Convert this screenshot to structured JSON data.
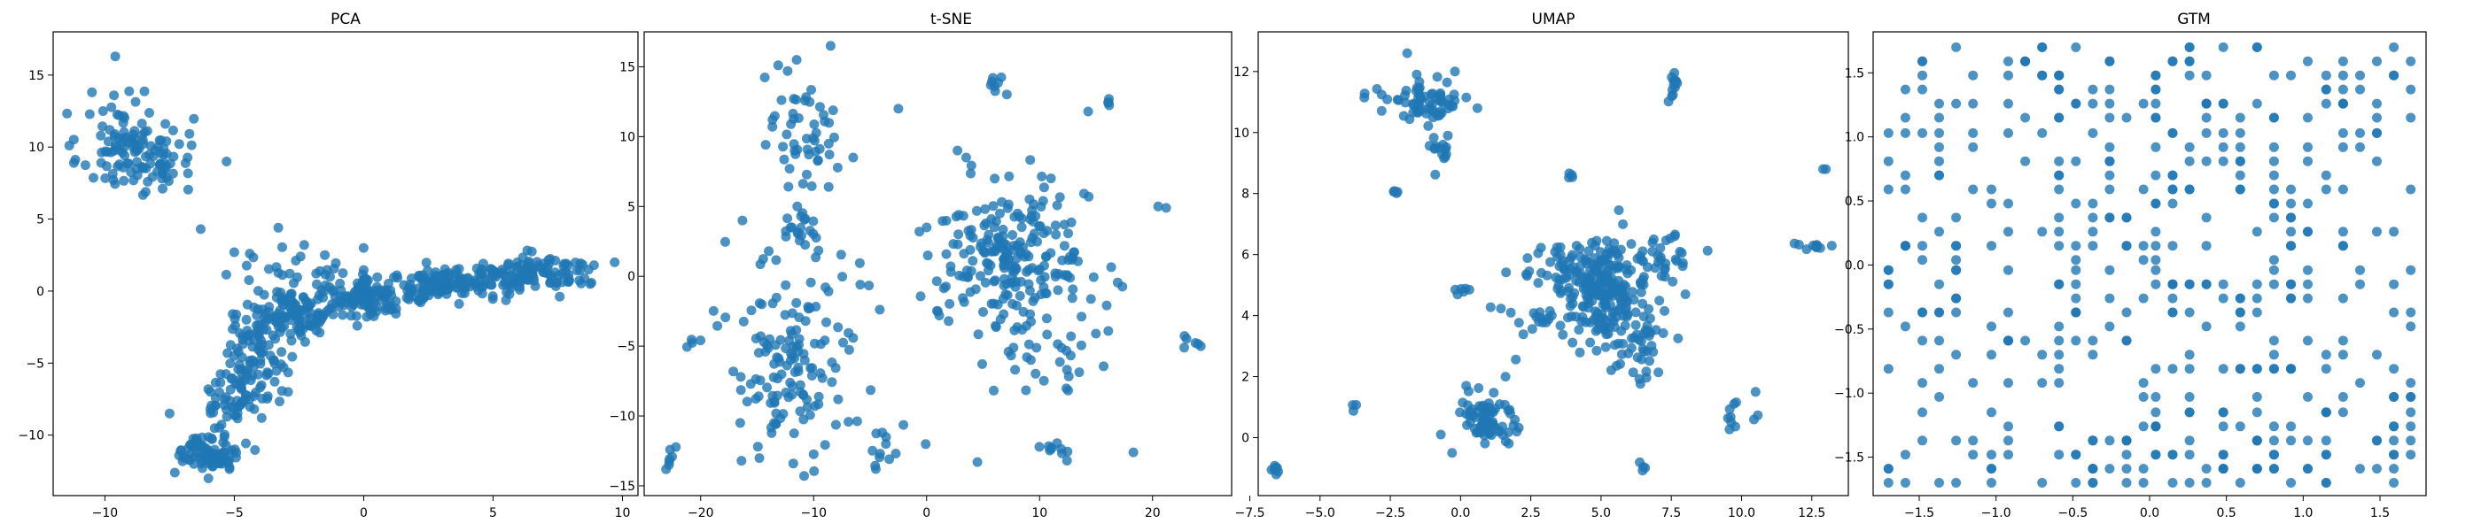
{
  "colors": {
    "points": "#1f77b4",
    "frame": "#000000"
  },
  "chart_data": [
    {
      "type": "scatter",
      "title": "PCA",
      "xlim": [
        -12,
        10.6
      ],
      "ylim": [
        -14.2,
        18
      ],
      "xticks": [
        -10,
        -5,
        0,
        5,
        10
      ],
      "xtick_labels": [
        "−10",
        "−5",
        "0",
        "5",
        "10"
      ],
      "yticks": [
        -10,
        -5,
        0,
        5,
        10,
        15
      ],
      "ytick_labels": [
        "−10",
        "−5",
        "0",
        "5",
        "10",
        "15"
      ],
      "clusters": [
        {
          "cx": -8.8,
          "cy": 9.6,
          "sx": 1.1,
          "sy": 1.4,
          "n": 110
        },
        {
          "cx": -9.5,
          "cy": 12.0,
          "sx": 0.5,
          "sy": 1.2,
          "n": 15
        },
        {
          "cx": 6.5,
          "cy": 1.2,
          "sx": 1.3,
          "sy": 0.6,
          "n": 130
        },
        {
          "cx": 3.0,
          "cy": 0.4,
          "sx": 1.2,
          "sy": 0.6,
          "n": 110
        },
        {
          "cx": 0.0,
          "cy": -0.3,
          "sx": 1.0,
          "sy": 0.8,
          "n": 110
        },
        {
          "cx": -2.6,
          "cy": -1.6,
          "sx": 0.8,
          "sy": 0.9,
          "n": 100
        },
        {
          "cx": -4.2,
          "cy": -4.5,
          "sx": 0.6,
          "sy": 1.6,
          "n": 90
        },
        {
          "cx": -5.1,
          "cy": -7.5,
          "sx": 0.5,
          "sy": 1.1,
          "n": 50
        },
        {
          "cx": -5.9,
          "cy": -11.2,
          "sx": 0.6,
          "sy": 0.6,
          "n": 90
        },
        {
          "cx": -3.0,
          "cy": 1.5,
          "sx": 1.0,
          "sy": 0.6,
          "n": 15
        }
      ],
      "points": [
        [
          -9.6,
          16.3
        ],
        [
          -10.5,
          13.8
        ],
        [
          -11.2,
          8.9
        ],
        [
          -5.3,
          9.0
        ],
        [
          -6.3,
          4.3
        ],
        [
          -3.3,
          4.4
        ],
        [
          -7.3,
          -12.6
        ],
        [
          -6.0,
          -13.0
        ],
        [
          -7.5,
          -8.5
        ],
        [
          -5.0,
          2.7
        ],
        [
          -2.3,
          3.2
        ],
        [
          -1.5,
          2.5
        ],
        [
          0.0,
          3.0
        ],
        [
          9.7,
          2.0
        ],
        [
          8.9,
          1.8
        ],
        [
          -4.4,
          2.6
        ]
      ]
    },
    {
      "type": "scatter",
      "title": "t-SNE",
      "xlim": [
        -25,
        27
      ],
      "ylim": [
        -15.7,
        17.5
      ],
      "xticks": [
        -20,
        -10,
        0,
        10,
        20
      ],
      "xtick_labels": [
        "−20",
        "−10",
        "0",
        "10",
        "20"
      ],
      "yticks": [
        -15,
        -10,
        -5,
        0,
        5,
        10,
        15
      ],
      "ytick_labels": [
        "−15",
        "−10",
        "−5",
        "0",
        "5",
        "10",
        "15"
      ],
      "clusters": [
        {
          "cx": 8,
          "cy": 1,
          "sx": 3.2,
          "sy": 2.6,
          "n": 200
        },
        {
          "cx": -12,
          "cy": -7.5,
          "sx": 2.0,
          "sy": 2.5,
          "n": 90
        },
        {
          "cx": -11,
          "cy": 10,
          "sx": 1.5,
          "sy": 2.5,
          "n": 50
        },
        {
          "cx": -11,
          "cy": 3.5,
          "sx": 1.2,
          "sy": 1.0,
          "n": 20
        },
        {
          "cx": -15,
          "cy": -2,
          "sx": 2.5,
          "sy": 2.0,
          "n": 25
        },
        {
          "cx": 12,
          "cy": -5,
          "sx": 3,
          "sy": 2,
          "n": 30
        },
        {
          "cx": 3,
          "cy": 2,
          "sx": 2,
          "sy": 3,
          "n": 25
        },
        {
          "cx": -4,
          "cy": -12,
          "sx": 1.5,
          "sy": 1.0,
          "n": 14
        },
        {
          "cx": 11,
          "cy": -12.3,
          "sx": 1.0,
          "sy": 0.5,
          "n": 10
        },
        {
          "cx": 6.5,
          "cy": 13.6,
          "sx": 0.6,
          "sy": 0.6,
          "n": 8
        },
        {
          "cx": 24,
          "cy": -4.7,
          "sx": 0.7,
          "sy": 0.2,
          "n": 6
        },
        {
          "cx": 16,
          "cy": 12.5,
          "sx": 0.3,
          "sy": 0.3,
          "n": 4
        },
        {
          "cx": -22.5,
          "cy": -13,
          "sx": 0.4,
          "sy": 0.7,
          "n": 6
        },
        {
          "cx": -21,
          "cy": -5,
          "sx": 0.3,
          "sy": 0.3,
          "n": 3
        },
        {
          "cx": -8,
          "cy": -3,
          "sx": 2,
          "sy": 3,
          "n": 25
        }
      ],
      "points": [
        [
          -8.5,
          16.5
        ],
        [
          -11.5,
          15.5
        ],
        [
          -12.3,
          14.7
        ],
        [
          3.5,
          8.5
        ],
        [
          -2.5,
          12
        ],
        [
          -22.8,
          -13.5
        ],
        [
          -11.8,
          -13.4
        ],
        [
          -4.5,
          -13.8
        ],
        [
          -13.5,
          -10.5
        ],
        [
          -16.5,
          -10.5
        ],
        [
          18.3,
          -12.6
        ],
        [
          0,
          3.5
        ],
        [
          -6.5,
          8.5
        ],
        [
          -16.3,
          4
        ],
        [
          20.5,
          5
        ],
        [
          21.2,
          4.9
        ],
        [
          4.5,
          -13.3
        ],
        [
          14.3,
          11.8
        ]
      ]
    },
    {
      "type": "scatter",
      "title": "UMAP",
      "xlim": [
        -7.2,
        13.8
      ],
      "ylim": [
        -1.9,
        13.3
      ],
      "xticks": [
        -7.5,
        -5.0,
        -2.5,
        0.0,
        2.5,
        5.0,
        7.5,
        10.0,
        12.5
      ],
      "xtick_labels": [
        "−7.5",
        "−5.0",
        "−2.5",
        "0.0",
        "2.5",
        "5.0",
        "7.5",
        "10.0",
        "12.5"
      ],
      "yticks": [
        0,
        2,
        4,
        6,
        8,
        10,
        12
      ],
      "ytick_labels": [
        "0",
        "2",
        "4",
        "6",
        "8",
        "10",
        "12"
      ],
      "clusters": [
        {
          "cx": 5.1,
          "cy": 4.8,
          "sx": 0.8,
          "sy": 0.8,
          "n": 220
        },
        {
          "cx": 6.5,
          "cy": 3.0,
          "sx": 0.5,
          "sy": 0.6,
          "n": 40
        },
        {
          "cx": 3.5,
          "cy": 5.6,
          "sx": 0.7,
          "sy": 0.4,
          "n": 35
        },
        {
          "cx": 7.2,
          "cy": 6.0,
          "sx": 0.6,
          "sy": 0.4,
          "n": 25
        },
        {
          "cx": 2.7,
          "cy": 3.8,
          "sx": 0.6,
          "sy": 0.3,
          "n": 15
        },
        {
          "cx": -1.2,
          "cy": 11.0,
          "sx": 0.6,
          "sy": 0.35,
          "n": 60
        },
        {
          "cx": -0.8,
          "cy": 9.5,
          "sx": 0.3,
          "sy": 0.4,
          "n": 15
        },
        {
          "cx": 0.9,
          "cy": 0.6,
          "sx": 0.5,
          "sy": 0.5,
          "n": 70
        },
        {
          "cx": 7.6,
          "cy": 11.5,
          "sx": 0.1,
          "sy": 0.3,
          "n": 12
        },
        {
          "cx": 12.5,
          "cy": 6.3,
          "sx": 0.35,
          "sy": 0.1,
          "n": 10
        },
        {
          "cx": 10.0,
          "cy": 0.6,
          "sx": 0.3,
          "sy": 0.35,
          "n": 10
        },
        {
          "cx": -6.6,
          "cy": -1.1,
          "sx": 0.15,
          "sy": 0.1,
          "n": 8
        },
        {
          "cx": -3.1,
          "cy": 11.0,
          "sx": 0.3,
          "sy": 0.2,
          "n": 6
        },
        {
          "cx": -2.3,
          "cy": 8.0,
          "sx": 0.1,
          "sy": 0.1,
          "n": 4
        },
        {
          "cx": 0.0,
          "cy": 4.8,
          "sx": 0.2,
          "sy": 0.1,
          "n": 6
        },
        {
          "cx": 6.5,
          "cy": -1.0,
          "sx": 0.1,
          "sy": 0.2,
          "n": 4
        },
        {
          "cx": 4.0,
          "cy": 8.5,
          "sx": 0.1,
          "sy": 0.1,
          "n": 4
        },
        {
          "cx": -3.8,
          "cy": 1.0,
          "sx": 0.1,
          "sy": 0.1,
          "n": 3
        }
      ],
      "points": [
        [
          -1.9,
          12.6
        ],
        [
          13.0,
          8.8
        ],
        [
          12.9,
          8.8
        ],
        [
          -0.2,
          12.0
        ],
        [
          0.6,
          10.8
        ],
        [
          1.6,
          2.0
        ],
        [
          -0.3,
          -0.5
        ],
        [
          2.0,
          0.2
        ],
        [
          8.0,
          4.7
        ],
        [
          10.5,
          1.5
        ],
        [
          0.2,
          1.7
        ]
      ]
    },
    {
      "type": "scatter",
      "title": "GTM",
      "xlim": [
        -1.8,
        1.8
      ],
      "ylim": [
        -1.8,
        1.82
      ],
      "xticks": [
        -1.5,
        -1.0,
        -0.5,
        0.0,
        0.5,
        1.0,
        1.5
      ],
      "xtick_labels": [
        "−1.5",
        "−1.0",
        "−0.5",
        "0.0",
        "0.5",
        "1.0",
        "1.5"
      ],
      "yticks": [
        -1.5,
        -1.0,
        -0.5,
        0.0,
        0.5,
        1.0,
        1.5
      ],
      "ytick_labels": [
        "−1.5",
        "−1.0",
        "−0.5",
        "0.0",
        "0.5",
        "1.0",
        "1.5"
      ],
      "grid_levels": [
        -1.7,
        -1.59,
        -1.48,
        -1.37,
        -1.26,
        -1.15,
        -1.03,
        -0.92,
        -0.81,
        -0.7,
        -0.59,
        -0.48,
        -0.37,
        -0.26,
        -0.15,
        -0.04,
        0.04,
        0.15,
        0.26,
        0.37,
        0.48,
        0.59,
        0.7,
        0.81,
        0.92,
        1.03,
        1.15,
        1.26,
        1.37,
        1.48,
        1.59,
        1.7
      ],
      "n_points": 480
    }
  ]
}
